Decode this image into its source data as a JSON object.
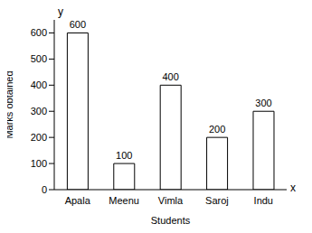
{
  "chart_data": {
    "type": "bar",
    "categories": [
      "Apala",
      "Meenu",
      "Vimla",
      "Saroj",
      "Indu"
    ],
    "values": [
      600,
      100,
      400,
      200,
      300
    ],
    "color": "#ffffff",
    "xlabel": "Students",
    "ylabel": "Marks obtained",
    "annotations": [
      "y",
      "x"
    ],
    "ylim": [
      0,
      650
    ],
    "yticks": [
      0,
      100,
      200,
      300,
      400,
      500,
      600
    ],
    "grid": false,
    "data_labels": true
  }
}
